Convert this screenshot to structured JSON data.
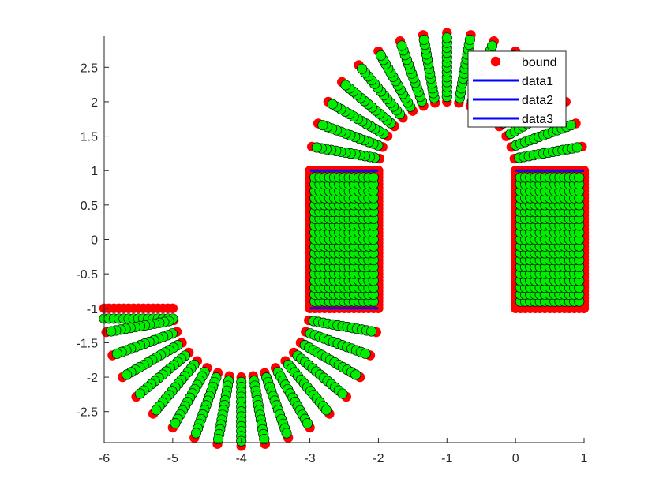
{
  "chart_data": {
    "type": "scatter",
    "title": "",
    "xlabel": "",
    "ylabel": "",
    "xlim": [
      -6,
      1
    ],
    "ylim": [
      -2.95,
      2.95
    ],
    "xticks": [
      -6,
      -5,
      -4,
      -3,
      -2,
      -1,
      0,
      1
    ],
    "yticks": [
      -2.5,
      -2,
      -1.5,
      -1,
      -0.5,
      0,
      0.5,
      1,
      1.5,
      2,
      2.5
    ],
    "xtick_labels": [
      "-6",
      "-5",
      "-4",
      "-3",
      "-2",
      "-1",
      "0",
      "1"
    ],
    "ytick_labels": [
      "-2.5",
      "-2",
      "-1.5",
      "-1",
      "-0.5",
      "0",
      "0.5",
      "1",
      "1.5",
      "2",
      "2.5"
    ],
    "grid": false,
    "legend_placement": "top-right",
    "shape": {
      "left_arm": {
        "x_start": -6,
        "x_end": -5,
        "y_outer": -1,
        "y_inner": -1.15,
        "width": 1
      },
      "lower_bend": {
        "center": [
          -4,
          -1
        ],
        "inner_radius": 1,
        "outer_radius": 2,
        "theta_start_deg": 180,
        "theta_end_deg": 360,
        "rays": 18
      },
      "middle_column": {
        "x_left": -3,
        "x_right": -2,
        "y_bottom": -1,
        "y_top": 1
      },
      "upper_bend": {
        "center": [
          -1,
          1
        ],
        "inner_radius": 1,
        "outer_radius": 2,
        "theta_start_deg": 180,
        "theta_end_deg": 0,
        "rays": 18
      },
      "right_column": {
        "x_left": 0,
        "x_right": 1,
        "y_bottom": -1,
        "y_top": 1
      }
    },
    "series": [
      {
        "name": "bound",
        "marker": "circle",
        "color": "#ff0000"
      },
      {
        "name": "data1",
        "type": "line",
        "color": "#0000ff",
        "x": [
          -3,
          -2
        ],
        "y": [
          1,
          1
        ]
      },
      {
        "name": "data2",
        "type": "line",
        "color": "#0000ff",
        "x": [
          -3,
          -2
        ],
        "y": [
          -1,
          -1
        ]
      },
      {
        "name": "data3",
        "type": "line",
        "color": "#0000ff",
        "x": [
          0,
          1
        ],
        "y": [
          1,
          1
        ]
      }
    ],
    "interior_marker": {
      "color": "#00ee00",
      "edge": "#000000"
    }
  }
}
